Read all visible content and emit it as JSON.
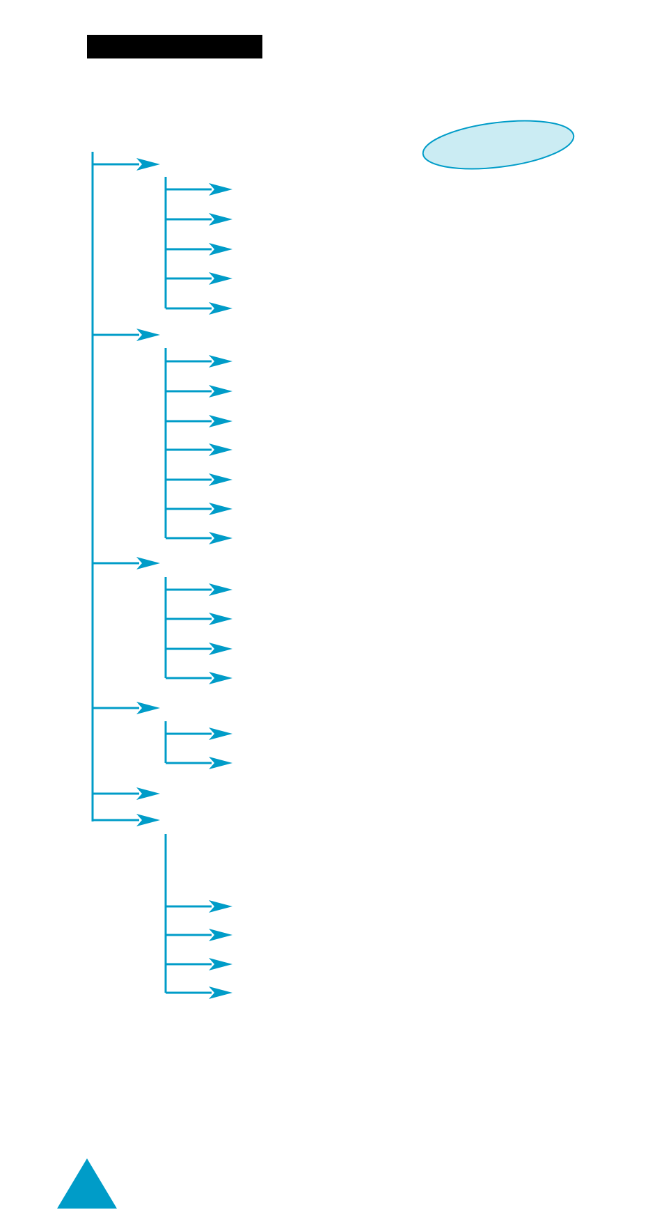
{
  "colors": {
    "accent": "#009cc8",
    "bubble_fill": "#cbecf3",
    "bubble_stroke": "#009cc8",
    "title_bar": "#000000",
    "background": "#ffffff"
  },
  "header": {
    "title_bar": "redacted-black-bar",
    "bubble": "oval-callout"
  },
  "tree": {
    "groups": [
      {
        "children": 5
      },
      {
        "children": 7
      },
      {
        "children": 4
      },
      {
        "children": 2
      },
      {
        "children": 0
      },
      {
        "children": 4
      }
    ]
  },
  "footer": {
    "icon": "triangle-marker-icon"
  }
}
